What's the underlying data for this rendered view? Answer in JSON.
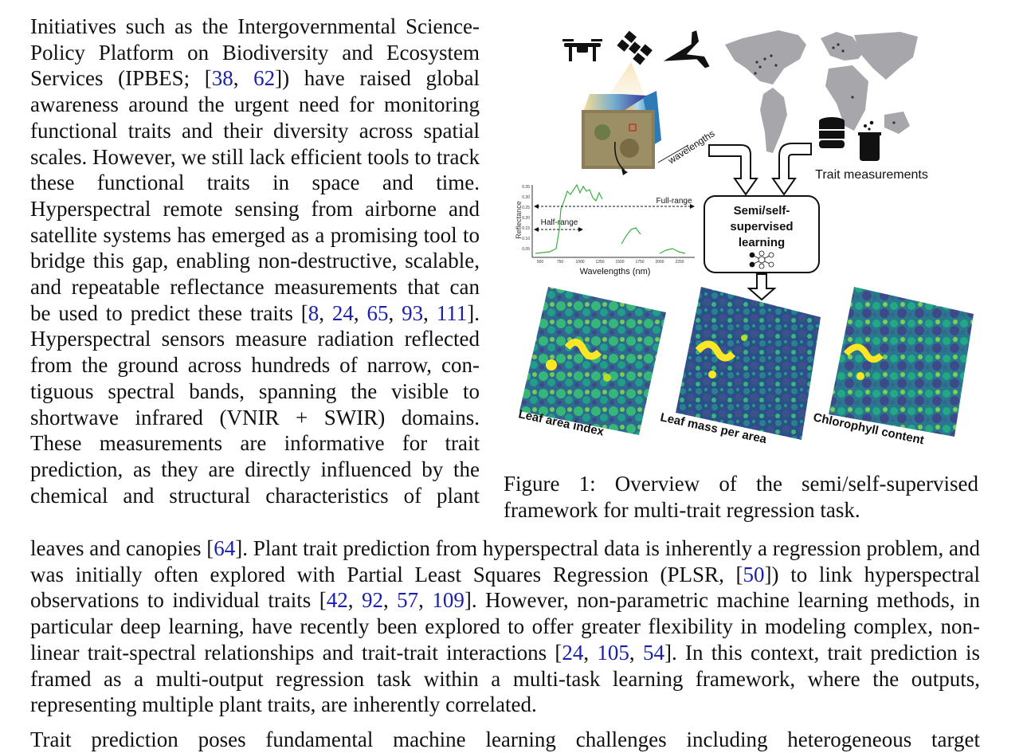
{
  "para1_left": "Initiatives such as the Intergovernmental Science-Policy Platform on Biodiversity and Ecosystem Services (IPBES; [38, 62]) have raised global awareness around the urgent need for monitoring functional traits and their diversity across spatial scales. However, we still lack efficient tools to track these functional traits in space and time. Hyperspectral remote sensing from airborne and satellite systems has emerged as a promising tool to bridge this gap, enabling non-destructive, scalable, and repeatable reflectance measurements that can be used to predict these traits [8, 24, 65, 93, 111]. Hyperspectral sensors measure radiation reflected from the ground across hundreds of narrow, contiguous spectral bands, spanning the visible to shortwave infrared (VNIR + SWIR) domains. These measurements are informative for trait prediction, as they are directly influenced by the chemical and structural characteristics of plant",
  "para1_full": "leaves and canopies [64]. Plant trait prediction from hyperspectral data is inherently a regression problem, and was initially often explored with Partial Least Squares Regression (PLSR, [50]) to link hyperspectral observations to individual traits [42, 92, 57, 109]. However, non-parametric machine learning methods, in particular deep learning, have recently been explored to offer greater flexibility in modeling complex, non-linear trait-spectral relationships and trait-trait interactions [24, 105, 54]. In this context, trait prediction is framed as a multi-output regression task within a multi-task learning framework, where the outputs, representing multiple plant traits, are inherently correlated.",
  "para2_start": "Trait prediction poses fundamental machine learning challenges including heterogeneous target",
  "figure": {
    "caption": "Figure 1: Overview of the semi/self-supervised framework for multi-trait regression task.",
    "wavelengths_label": "wavelengths",
    "trait_measurements_label": "Trait measurements",
    "learning_box_lines": [
      "Semi/self-",
      "supervised",
      "learning"
    ],
    "spectrum": {
      "ylabel": "Reflectance",
      "xlabel": "Wavelengths (nm)",
      "full_range_label": "Full-range",
      "half_range_label": "Half-range",
      "xticks": [
        "500",
        "750",
        "1000",
        "1250",
        "1500",
        "1750",
        "2000",
        "2250"
      ],
      "yticks": [
        "0.35",
        "0.30",
        "0.25",
        "0.20",
        "0.15",
        "0.10",
        "0.05"
      ]
    },
    "maps": [
      "Leaf area index",
      "Leaf mass per area",
      "Chlorophyll content"
    ],
    "colors": {
      "viridis_dark": "#3b528b",
      "viridis_mid": "#21918c",
      "viridis_green": "#5ec962",
      "viridis_yellow": "#fde725",
      "spectrum_green": "#3cb043",
      "citation_blue": "#1a21a8"
    }
  }
}
